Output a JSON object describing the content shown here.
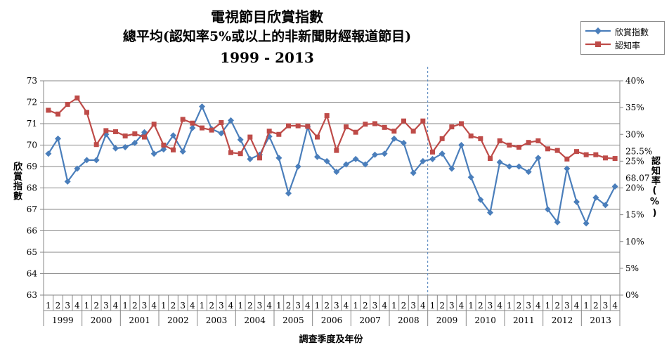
{
  "chart_data": {
    "type": "line",
    "title": [
      "電視節目欣賞指數",
      "總平均(認知率5%或以上的非新聞財經報道節目)",
      "1999 - 2013"
    ],
    "xlabel": "調查季度及年份",
    "ylabel": "欣賞指數",
    "y2label": "認知率(%)",
    "ylim": [
      63,
      73
    ],
    "y2lim": [
      0,
      40
    ],
    "yticks": [
      "63",
      "64",
      "65",
      "66",
      "67",
      "68",
      "69",
      "70",
      "71",
      "72",
      "73"
    ],
    "y2ticks": [
      "0%",
      "5%",
      "10%",
      "15%",
      "20%",
      "25%",
      "30%",
      "35%",
      "40%"
    ],
    "quarters": [
      "1",
      "2",
      "3",
      "4"
    ],
    "years": [
      "1999",
      "2000",
      "2001",
      "2002",
      "2003",
      "2004",
      "2005",
      "2006",
      "2007",
      "2008",
      "2009",
      "2010",
      "2011",
      "2012",
      "2013"
    ],
    "legend_position": "top-right",
    "grid": true,
    "divider_after_quarter_index": 39,
    "annotations": [
      {
        "text": "25.5%",
        "series": 1,
        "index": 59
      },
      {
        "text": "68.07",
        "series": 0,
        "index": 59
      }
    ],
    "series": [
      {
        "name": "欣賞指數",
        "axis": "left",
        "color": "#4a7ebb",
        "marker": "diamond",
        "values": [
          69.6,
          70.3,
          68.3,
          68.9,
          69.3,
          69.3,
          70.5,
          69.85,
          69.9,
          70.1,
          70.6,
          69.6,
          69.8,
          70.45,
          69.7,
          70.8,
          71.8,
          70.75,
          70.55,
          71.15,
          70.25,
          69.35,
          69.55,
          70.4,
          69.4,
          67.75,
          69.0,
          70.85,
          69.45,
          69.25,
          68.75,
          69.1,
          69.35,
          69.1,
          69.55,
          69.6,
          70.3,
          70.1,
          68.7,
          69.25,
          69.35,
          69.6,
          68.9,
          70.0,
          68.5,
          67.45,
          66.85,
          69.2,
          69.0,
          69.0,
          68.75,
          69.4,
          67.0,
          66.4,
          68.9,
          67.35,
          66.35,
          67.55,
          67.2,
          68.07
        ]
      },
      {
        "name": "認知率",
        "axis": "right",
        "color": "#be4b48",
        "marker": "square",
        "values": [
          34.5,
          33.8,
          35.6,
          36.8,
          34.1,
          28.1,
          30.7,
          30.5,
          29.7,
          30.1,
          29.5,
          31.9,
          28.0,
          27.1,
          32.8,
          32.1,
          31.2,
          30.8,
          32.2,
          26.6,
          26.4,
          29.5,
          25.6,
          30.6,
          30.0,
          31.6,
          31.6,
          31.5,
          29.5,
          33.5,
          27.0,
          31.4,
          30.4,
          31.9,
          32.0,
          31.3,
          30.6,
          32.5,
          30.6,
          32.5,
          26.7,
          29.2,
          31.4,
          32.0,
          29.7,
          29.2,
          25.5,
          28.8,
          28.0,
          27.6,
          28.5,
          28.8,
          27.3,
          27.0,
          25.4,
          26.8,
          26.2,
          26.2,
          25.6,
          25.5
        ]
      }
    ]
  }
}
